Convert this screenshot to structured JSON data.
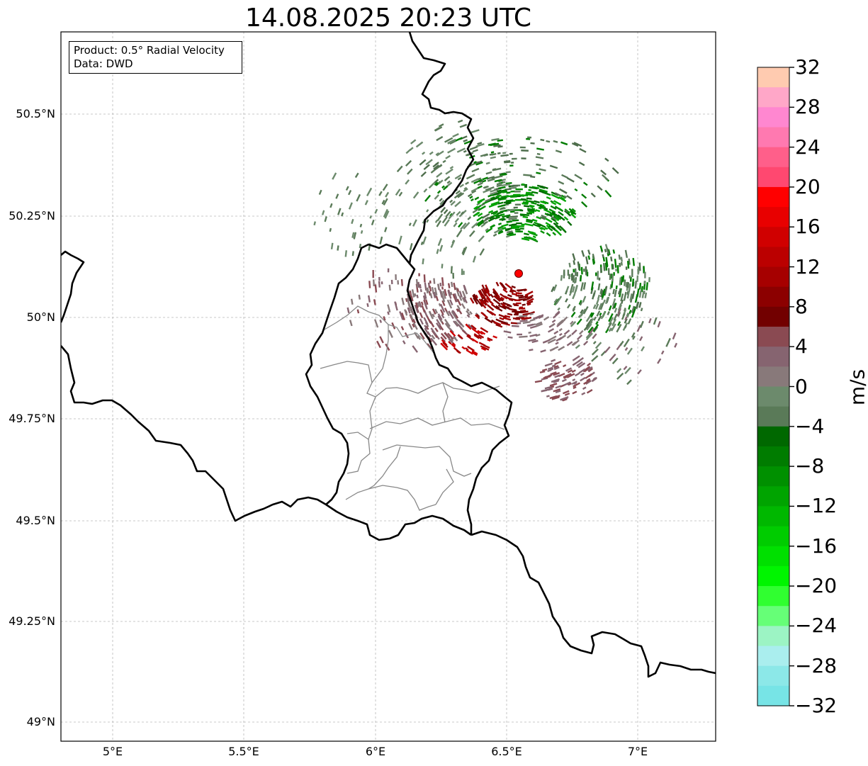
{
  "title": "14.08.2025 20:23 UTC",
  "info": {
    "product": "Product: 0.5° Radial Velocity",
    "data": "Data: DWD"
  },
  "map": {
    "lon_range": [
      4.8,
      7.3
    ],
    "lat_range": [
      48.95,
      50.7
    ],
    "lat_ticks": [
      "50.5°N",
      "50.25°N",
      "50°N",
      "49.75°N",
      "49.5°N",
      "49.25°N",
      "49°N"
    ],
    "lon_ticks": [
      "5°E",
      "5.5°E",
      "6°E",
      "6.5°E",
      "7°E"
    ],
    "gridlines": true,
    "radar_site": {
      "lon": 6.548,
      "lat": 50.11,
      "color": "#ff0000"
    }
  },
  "colorbar": {
    "unit": "m/s",
    "tick_labels": [
      "32",
      "28",
      "24",
      "20",
      "16",
      "12",
      "8",
      "4",
      "0",
      "−4",
      "−8",
      "−12",
      "−16",
      "−20",
      "−24",
      "−28",
      "−32"
    ],
    "colors_top_to_bottom": [
      "#ffcbb0",
      "#ffa7c8",
      "#ff87d0",
      "#ff79b0",
      "#ff5f8a",
      "#ff4870",
      "#ff0000",
      "#e80000",
      "#d00000",
      "#bb0000",
      "#a60000",
      "#8c0000",
      "#720000",
      "#8a4a52",
      "#866470",
      "#88797a",
      "#6c8a6c",
      "#5a7a58",
      "#006800",
      "#007c00",
      "#009000",
      "#00a400",
      "#00b800",
      "#00cc00",
      "#00e000",
      "#00f500",
      "#30ff30",
      "#66ff77",
      "#9cf4c4",
      "#aaeeee",
      "#8ce8e8",
      "#77e4e6"
    ]
  }
}
